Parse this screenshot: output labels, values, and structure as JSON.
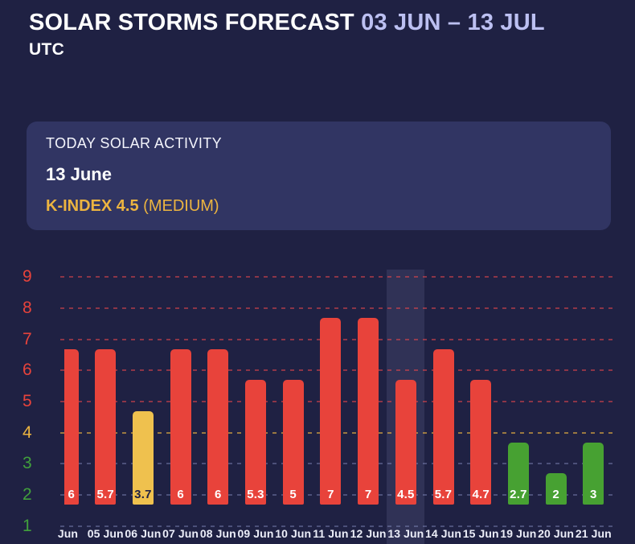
{
  "header": {
    "title": "SOLAR STORMS FORECAST",
    "date_range": "03 JUN – 13 JUL",
    "timezone": "UTC"
  },
  "today_card": {
    "label": "TODAY SOLAR ACTIVITY",
    "date": "13 June",
    "k_index": "K-INDEX 4.5",
    "k_level": "(MEDIUM)"
  },
  "colors": {
    "background": "#1F2143",
    "card_background": "#313563",
    "accent_lavender": "#BCC0F2",
    "gold": "#ECB440",
    "bar_red": "#E8433B",
    "bar_yellow": "#EFC14E",
    "bar_green": "#47A132",
    "label_on_yellow": "#1F2143",
    "tick_red": "#E8433B",
    "tick_yellow": "#ECB440",
    "tick_green": "#41A03C",
    "grid_red": "rgba(230,70,75,0.55)",
    "grid_yellow": "rgba(236,180,64,0.60)",
    "grid_slate": "rgba(148,158,210,0.38)",
    "highlight_band": "rgba(188,192,242,0.11)",
    "x_label": "#ECEEF9"
  },
  "chart_data": {
    "type": "bar",
    "title": "Solar storms forecast K-index by day",
    "categories": [
      "Jun",
      "05 Jun",
      "06 Jun",
      "07 Jun",
      "08 Jun",
      "09 Jun",
      "10 Jun",
      "11 Jun",
      "12 Jun",
      "13 Jun",
      "14 Jun",
      "15 Jun",
      "19 Jun",
      "20 Jun",
      "21 Jun"
    ],
    "values": [
      6,
      5.7,
      3.7,
      6,
      6,
      5.3,
      5,
      7,
      7,
      4.5,
      5.7,
      4.7,
      2.7,
      2,
      3
    ],
    "bar_levels": [
      "red",
      "red",
      "yellow",
      "red",
      "red",
      "red",
      "red",
      "red",
      "red",
      "red",
      "red",
      "red",
      "green",
      "green",
      "green"
    ],
    "highlighted_category": "13 Jun",
    "y_ticks": [
      9,
      8,
      7,
      6,
      5,
      4,
      3,
      2,
      1
    ],
    "ylim": [
      1,
      9
    ],
    "grid": "dashed horizontal, color-coded by severity (red 5-9, yellow 4, slate 1-3)",
    "legend_position": "none",
    "xlabel": "",
    "ylabel": ""
  }
}
